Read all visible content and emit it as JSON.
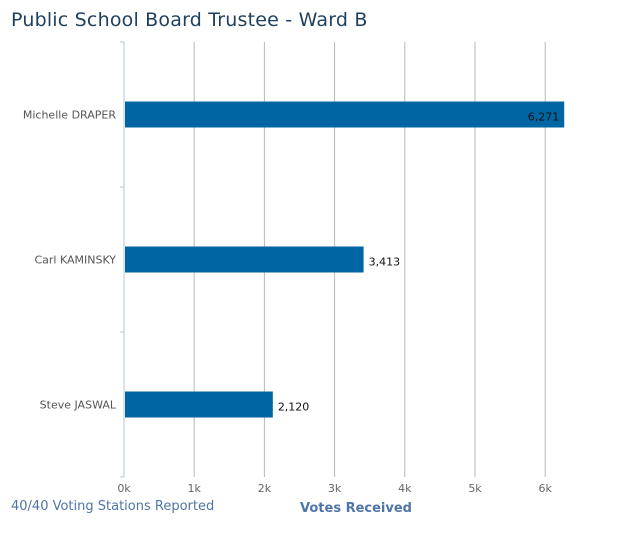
{
  "title": "Public School Board Trustee - Ward B",
  "footer": "40/40 Voting Stations Reported",
  "colors": {
    "bar": "#0066a3",
    "grid": "#b8b8b8",
    "axis": "#b0c4de"
  },
  "chart_data": {
    "type": "bar",
    "orientation": "horizontal",
    "categories": [
      "Michelle DRAPER",
      "Carl KAMINSKY",
      "Steve JASWAL"
    ],
    "values": [
      6271,
      3413,
      2120
    ],
    "value_labels": [
      "6,271",
      "3,413",
      "2,120"
    ],
    "xlabel": "Votes Received",
    "xlim": [
      0,
      6000
    ],
    "xticks": [
      0,
      1000,
      2000,
      3000,
      4000,
      5000,
      6000
    ],
    "xtick_labels": [
      "0k",
      "1k",
      "2k",
      "3k",
      "4k",
      "5k",
      "6k"
    ],
    "grid": true,
    "legend": "none"
  }
}
